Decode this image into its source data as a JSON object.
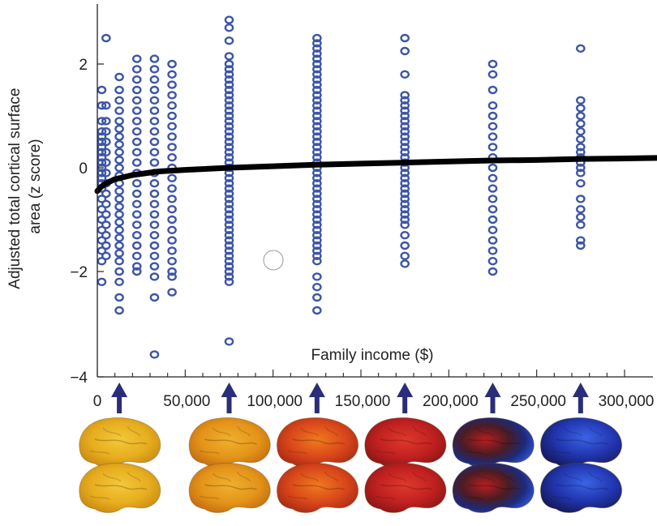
{
  "chart_data": {
    "type": "scatter",
    "title": "",
    "xlabel": "Family income ($)",
    "ylabel": "Adjusted total cortical surface area (z score)",
    "ylabel_lines": [
      "Adjusted total cortical surface",
      "area (z score)"
    ],
    "xlim": [
      0,
      320000
    ],
    "ylim": [
      -4,
      3.2
    ],
    "x_ticks": [
      0,
      50000,
      100000,
      150000,
      200000,
      250000,
      300000
    ],
    "x_tick_labels": [
      "0",
      "50,000",
      "100,000",
      "150,000",
      "200,000",
      "250,000",
      "300,000"
    ],
    "y_ticks": [
      -4,
      -2,
      0,
      2
    ],
    "y_tick_labels": [
      "−4",
      "−2",
      "0",
      "2"
    ],
    "grid": false,
    "legend": "none",
    "point_color": "#3d55a6",
    "curve_color": "#000000",
    "marker": "open-circle",
    "groups": [
      {
        "x": 2500,
        "y": [
          0.7,
          0.6,
          0.5,
          0.4,
          0.3,
          0.2,
          0.1,
          0.0,
          -0.1,
          -0.2,
          -0.3,
          -0.4,
          -0.6,
          -0.8,
          -1.0,
          -1.2,
          -1.4,
          -1.6,
          -1.8,
          -2.2,
          1.2,
          1.5,
          0.9
        ]
      },
      {
        "x": 5000,
        "y": [
          2.5,
          1.2,
          0.9,
          0.7,
          0.5,
          0.3,
          0.1,
          -0.1,
          -0.3,
          -0.5,
          -0.7,
          -0.9,
          -1.1,
          -1.3,
          -1.5,
          -1.7
        ]
      },
      {
        "x": 12500,
        "y": [
          1.75,
          1.5,
          1.3,
          1.1,
          0.9,
          0.75,
          0.6,
          0.45,
          0.3,
          0.15,
          0.0,
          -0.15,
          -0.3,
          -0.45,
          -0.6,
          -0.75,
          -0.9,
          -1.05,
          -1.2,
          -1.35,
          -1.5,
          -1.65,
          -1.8,
          -2.0,
          -2.2,
          -2.5,
          -2.75
        ]
      },
      {
        "x": 22500,
        "y": [
          2.1,
          1.9,
          1.7,
          1.5,
          1.3,
          1.1,
          0.9,
          0.7,
          0.5,
          0.3,
          0.1,
          -0.1,
          -0.3,
          -0.5,
          -0.7,
          -0.9,
          -1.1,
          -1.3,
          -1.5,
          -1.7,
          -1.9,
          -2.0
        ]
      },
      {
        "x": 32500,
        "y": [
          2.1,
          1.9,
          1.7,
          1.5,
          1.3,
          1.1,
          0.9,
          0.7,
          0.5,
          0.3,
          0.1,
          -0.1,
          -0.3,
          -0.5,
          -0.7,
          -0.9,
          -1.1,
          -1.3,
          -1.5,
          -1.7,
          -1.9,
          -2.1,
          -2.5,
          -3.6
        ]
      },
      {
        "x": 42500,
        "y": [
          2.0,
          1.8,
          1.6,
          1.4,
          1.2,
          1.0,
          0.8,
          0.6,
          0.4,
          0.2,
          0.0,
          -0.2,
          -0.4,
          -0.6,
          -0.8,
          -1.0,
          -1.2,
          -1.4,
          -1.6,
          -1.8,
          -2.0,
          -2.1,
          -2.4
        ]
      },
      {
        "x": 75000,
        "y": [
          2.85,
          2.7,
          2.45,
          2.15,
          2.0,
          1.9,
          1.8,
          1.7,
          1.6,
          1.5,
          1.4,
          1.3,
          1.2,
          1.1,
          1.0,
          0.9,
          0.8,
          0.7,
          0.6,
          0.5,
          0.4,
          0.3,
          0.2,
          0.1,
          0.0,
          -0.1,
          -0.2,
          -0.3,
          -0.4,
          -0.5,
          -0.6,
          -0.7,
          -0.8,
          -0.9,
          -1.0,
          -1.1,
          -1.2,
          -1.3,
          -1.4,
          -1.5,
          -1.6,
          -1.7,
          -1.8,
          -1.9,
          -2.0,
          -2.1,
          -2.2,
          -3.35
        ]
      },
      {
        "x": 125000,
        "y": [
          2.5,
          2.4,
          2.3,
          2.2,
          2.1,
          2.0,
          1.9,
          1.8,
          1.7,
          1.6,
          1.5,
          1.4,
          1.3,
          1.2,
          1.1,
          1.0,
          0.9,
          0.8,
          0.7,
          0.6,
          0.5,
          0.4,
          0.3,
          0.2,
          0.1,
          0.0,
          -0.1,
          -0.2,
          -0.3,
          -0.4,
          -0.5,
          -0.6,
          -0.7,
          -0.8,
          -0.9,
          -1.0,
          -1.1,
          -1.2,
          -1.3,
          -1.4,
          -1.5,
          -1.6,
          -1.7,
          -1.8,
          -2.1,
          -2.3,
          -2.5,
          -2.75
        ]
      },
      {
        "x": 175000,
        "y": [
          2.5,
          2.25,
          1.8,
          1.4,
          1.3,
          1.2,
          1.1,
          1.0,
          0.9,
          0.8,
          0.7,
          0.6,
          0.5,
          0.4,
          0.3,
          0.2,
          0.1,
          0.0,
          -0.1,
          -0.2,
          -0.3,
          -0.4,
          -0.5,
          -0.6,
          -0.7,
          -0.8,
          -0.9,
          -1.0,
          -1.1,
          -1.3,
          -1.5,
          -1.7,
          -1.85
        ]
      },
      {
        "x": 225000,
        "y": [
          2.0,
          1.8,
          1.5,
          1.2,
          1.0,
          0.8,
          0.6,
          0.4,
          0.2,
          0.0,
          -0.2,
          -0.4,
          -0.6,
          -0.8,
          -1.0,
          -1.2,
          -1.4,
          -1.6,
          -1.8,
          -2.0
        ]
      },
      {
        "x": 275000,
        "y": [
          2.3,
          1.3,
          1.15,
          1.0,
          0.85,
          0.7,
          0.55,
          0.4,
          0.3,
          0.2,
          0.1,
          0.0,
          -0.1,
          -0.3,
          -0.6,
          -0.8,
          -0.95,
          -1.1,
          -1.4,
          -1.5
        ]
      }
    ],
    "fit_curve": {
      "x": [
        0,
        2000,
        5000,
        10000,
        20000,
        35000,
        50000,
        75000,
        100000,
        125000,
        150000,
        175000,
        200000,
        225000,
        250000,
        275000,
        300000,
        320000
      ],
      "y": [
        -0.45,
        -0.37,
        -0.3,
        -0.22,
        -0.14,
        -0.07,
        -0.04,
        0.0,
        0.03,
        0.06,
        0.08,
        0.1,
        0.12,
        0.14,
        0.15,
        0.17,
        0.18,
        0.19
      ]
    },
    "marker_arrows_x": [
      12500,
      75000,
      125000,
      175000,
      225000,
      275000
    ],
    "brain_maps": [
      {
        "income_x": 12500,
        "palette": "yellow"
      },
      {
        "income_x": 75000,
        "palette": "yellow-orange"
      },
      {
        "income_x": 125000,
        "palette": "orange-red"
      },
      {
        "income_x": 175000,
        "palette": "red"
      },
      {
        "income_x": 225000,
        "palette": "red-blue"
      },
      {
        "income_x": 275000,
        "palette": "blue"
      }
    ],
    "arrow_color": "#2a2d78"
  }
}
